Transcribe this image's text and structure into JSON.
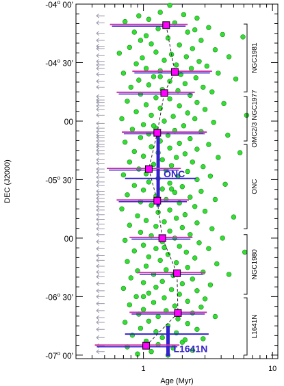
{
  "chart_data": {
    "type": "scatter",
    "xlabel": "Age (Myr)",
    "ylabel": "DEC (J2000)",
    "x_scale": "log",
    "xlim": [
      0.3,
      11
    ],
    "ylim": [
      -4.0,
      -7.03
    ],
    "x_ticks": [
      {
        "value": 1,
        "label": "1"
      },
      {
        "value": 10,
        "label": "10"
      }
    ],
    "y_ticks": [
      {
        "value": -4.0,
        "deg": "-04",
        "min": "00'"
      },
      {
        "value": -4.5,
        "deg": "-04",
        "min": "30'"
      },
      {
        "value": -5.0,
        "deg": "",
        "min": "00"
      },
      {
        "value": -5.5,
        "deg": "-05",
        "min": "30'"
      },
      {
        "value": -6.0,
        "deg": "",
        "min": "00"
      },
      {
        "value": -6.5,
        "deg": "-06",
        "min": "30'"
      },
      {
        "value": -7.0,
        "deg": "-07",
        "min": "00'"
      }
    ],
    "colors": {
      "stars": "#33dd33",
      "star_edge": "#1a8a1a",
      "upper_limits": "#9999aa",
      "median_marker": "#ff00ff",
      "median_edge": "#000000",
      "error_pink": "#cc33aa",
      "error_blue": "#3322cc",
      "dashed_line": "#222222",
      "label_blue": "#3322cc"
    },
    "medians": [
      {
        "dec": -4.18,
        "age": 1.5,
        "err_lo": 0.55,
        "err_hi": 2.2
      },
      {
        "dec": -4.58,
        "age": 1.75,
        "err_lo": 0.82,
        "err_hi": 3.4
      },
      {
        "dec": -4.76,
        "age": 1.45,
        "err_lo": 0.62,
        "err_hi": 2.5
      },
      {
        "dec": -5.1,
        "age": 1.28,
        "err_lo": 0.68,
        "err_hi": 3.1
      },
      {
        "dec": -5.41,
        "age": 1.1,
        "err_lo": 0.52,
        "err_hi": 1.95
      },
      {
        "dec": -5.68,
        "age": 1.28,
        "err_lo": 0.62,
        "err_hi": 2.25
      },
      {
        "dec": -6.0,
        "age": 1.4,
        "err_lo": 0.78,
        "err_hi": 2.4
      },
      {
        "dec": -6.3,
        "age": 1.82,
        "err_lo": 0.9,
        "err_hi": 3.0
      },
      {
        "dec": -6.64,
        "age": 1.85,
        "err_lo": 0.78,
        "err_hi": 3.1
      },
      {
        "dec": -6.92,
        "age": 1.05,
        "err_lo": 0.42,
        "err_hi": 1.9
      }
    ],
    "cluster_markers": [
      {
        "label": "ONC",
        "age": 1.3,
        "dec_top": -5.11,
        "dec_bottom": -5.73,
        "range_lo": 0.72,
        "range_hi": 2.55,
        "range_dec": -5.49
      },
      {
        "label": "L1641N",
        "age": 1.55,
        "dec_top": -6.75,
        "dec_bottom": -7.01,
        "range_lo": 0.72,
        "range_hi": 3.2,
        "range_dec": -6.82
      }
    ],
    "regions": [
      {
        "label": "NGC1981",
        "dec_top": -4.17,
        "dec_bottom": -4.75
      },
      {
        "label": "OMC2/3 NGC1977",
        "dec_top": -4.79,
        "dec_bottom": -5.17
      },
      {
        "label": "ONC",
        "dec_top": -5.2,
        "dec_bottom": -5.92
      },
      {
        "label": "NGC1980",
        "dec_top": -5.97,
        "dec_bottom": -6.48
      },
      {
        "label": "L1641N",
        "dec_top": -6.51,
        "dec_bottom": -7.0
      }
    ],
    "upper_limit_age": 0.5,
    "upper_limit_decs": [
      -4.1,
      -4.16,
      -4.25,
      -4.31,
      -4.36,
      -4.38,
      -4.44,
      -4.49,
      -4.52,
      -4.55,
      -4.6,
      -4.66,
      -4.71,
      -4.79,
      -4.82,
      -4.84,
      -4.87,
      -4.9,
      -4.95,
      -5.02,
      -5.06,
      -5.09,
      -5.12,
      -5.14,
      -5.17,
      -5.2,
      -5.22,
      -5.25,
      -5.28,
      -5.33,
      -5.36,
      -5.41,
      -5.44,
      -5.48,
      -5.52,
      -5.55,
      -5.6,
      -5.63,
      -5.66,
      -5.69,
      -5.73,
      -5.76,
      -5.8,
      -5.84,
      -5.88,
      -5.92,
      -5.97,
      -6.03,
      -6.09,
      -6.15,
      -6.19,
      -6.24,
      -6.29,
      -6.33,
      -6.39,
      -6.45,
      -6.5,
      -6.56,
      -6.62,
      -6.68,
      -6.72,
      -6.78,
      -6.85,
      -6.92,
      -6.97
    ],
    "stars": [
      [
        1.6,
        -4.01
      ],
      [
        1.35,
        -4.07
      ],
      [
        0.92,
        -4.1
      ],
      [
        2.05,
        -4.09
      ],
      [
        1.1,
        -4.13
      ],
      [
        2.6,
        -4.12
      ],
      [
        0.72,
        -4.15
      ],
      [
        1.75,
        -4.16
      ],
      [
        3.2,
        -4.2
      ],
      [
        1.3,
        -4.21
      ],
      [
        0.85,
        -4.24
      ],
      [
        2.2,
        -4.24
      ],
      [
        1.05,
        -4.27
      ],
      [
        4.1,
        -4.26
      ],
      [
        1.55,
        -4.29
      ],
      [
        0.95,
        -4.31
      ],
      [
        2.8,
        -4.31
      ],
      [
        5.9,
        -4.28
      ],
      [
        1.15,
        -4.34
      ],
      [
        1.9,
        -4.35
      ],
      [
        0.78,
        -4.37
      ],
      [
        2.4,
        -4.38
      ],
      [
        3.6,
        -4.39
      ],
      [
        1.25,
        -4.41
      ],
      [
        0.65,
        -4.42
      ],
      [
        1.65,
        -4.43
      ],
      [
        2.15,
        -4.45
      ],
      [
        0.98,
        -4.46
      ],
      [
        4.6,
        -4.45
      ],
      [
        1.45,
        -4.48
      ],
      [
        2.7,
        -4.49
      ],
      [
        0.88,
        -4.51
      ],
      [
        1.8,
        -4.52
      ],
      [
        3.1,
        -4.53
      ],
      [
        1.05,
        -4.55
      ],
      [
        2.35,
        -4.55
      ],
      [
        1.35,
        -4.57
      ],
      [
        0.7,
        -4.59
      ],
      [
        1.95,
        -4.6
      ],
      [
        3.8,
        -4.59
      ],
      [
        1.2,
        -4.62
      ],
      [
        2.55,
        -4.63
      ],
      [
        0.92,
        -4.65
      ],
      [
        1.6,
        -4.66
      ],
      [
        5.2,
        -4.64
      ],
      [
        2.1,
        -4.68
      ],
      [
        1.1,
        -4.69
      ],
      [
        0.8,
        -4.71
      ],
      [
        2.9,
        -4.71
      ],
      [
        1.4,
        -4.73
      ],
      [
        1.85,
        -4.74
      ],
      [
        3.4,
        -4.75
      ],
      [
        0.95,
        -4.77
      ],
      [
        2.3,
        -4.78
      ],
      [
        1.25,
        -4.8
      ],
      [
        1.6,
        -4.81
      ],
      [
        0.75,
        -4.83
      ],
      [
        2.6,
        -4.84
      ],
      [
        4.2,
        -4.85
      ],
      [
        1.05,
        -4.86
      ],
      [
        1.9,
        -4.87
      ],
      [
        1.35,
        -4.89
      ],
      [
        3.0,
        -4.9
      ],
      [
        0.88,
        -4.92
      ],
      [
        2.2,
        -4.93
      ],
      [
        1.15,
        -4.95
      ],
      [
        1.7,
        -4.96
      ],
      [
        6.3,
        -4.95
      ],
      [
        0.68,
        -4.98
      ],
      [
        2.5,
        -4.98
      ],
      [
        1.45,
        -5.0
      ],
      [
        3.5,
        -5.01
      ],
      [
        1.0,
        -5.03
      ],
      [
        2.05,
        -5.04
      ],
      [
        1.25,
        -5.06
      ],
      [
        0.82,
        -5.07
      ],
      [
        1.75,
        -5.08
      ],
      [
        2.8,
        -5.09
      ],
      [
        1.1,
        -5.11
      ],
      [
        1.55,
        -5.12
      ],
      [
        4.5,
        -5.12
      ],
      [
        0.95,
        -5.14
      ],
      [
        2.3,
        -5.15
      ],
      [
        1.35,
        -5.17
      ],
      [
        0.72,
        -5.18
      ],
      [
        1.9,
        -5.19
      ],
      [
        3.2,
        -5.2
      ],
      [
        1.15,
        -5.22
      ],
      [
        1.6,
        -5.23
      ],
      [
        2.6,
        -5.24
      ],
      [
        0.85,
        -5.26
      ],
      [
        1.3,
        -5.27
      ],
      [
        2.1,
        -5.28
      ],
      [
        5.6,
        -5.27
      ],
      [
        1.0,
        -5.3
      ],
      [
        1.8,
        -5.31
      ],
      [
        3.8,
        -5.31
      ],
      [
        1.4,
        -5.33
      ],
      [
        0.78,
        -5.35
      ],
      [
        2.4,
        -5.35
      ],
      [
        1.2,
        -5.37
      ],
      [
        1.65,
        -5.38
      ],
      [
        2.9,
        -5.39
      ],
      [
        0.92,
        -5.41
      ],
      [
        1.5,
        -5.42
      ],
      [
        2.2,
        -5.43
      ],
      [
        1.05,
        -5.45
      ],
      [
        0.7,
        -5.46
      ],
      [
        1.85,
        -5.47
      ],
      [
        3.3,
        -5.47
      ],
      [
        1.3,
        -5.49
      ],
      [
        2.6,
        -5.5
      ],
      [
        1.1,
        -5.52
      ],
      [
        1.6,
        -5.53
      ],
      [
        0.85,
        -5.55
      ],
      [
        4.3,
        -5.54
      ],
      [
        2.0,
        -5.56
      ],
      [
        1.4,
        -5.58
      ],
      [
        1.0,
        -5.59
      ],
      [
        2.8,
        -5.6
      ],
      [
        1.75,
        -5.61
      ],
      [
        0.75,
        -5.63
      ],
      [
        1.25,
        -5.64
      ],
      [
        2.3,
        -5.65
      ],
      [
        1.5,
        -5.67
      ],
      [
        3.6,
        -5.67
      ],
      [
        0.95,
        -5.69
      ],
      [
        1.9,
        -5.7
      ],
      [
        1.15,
        -5.72
      ],
      [
        2.5,
        -5.73
      ],
      [
        0.68,
        -5.75
      ],
      [
        1.6,
        -5.76
      ],
      [
        3.0,
        -5.77
      ],
      [
        1.3,
        -5.78
      ],
      [
        2.1,
        -5.8
      ],
      [
        0.9,
        -5.81
      ],
      [
        1.8,
        -5.83
      ],
      [
        5.0,
        -5.82
      ],
      [
        1.05,
        -5.85
      ],
      [
        1.45,
        -5.86
      ],
      [
        2.6,
        -5.87
      ],
      [
        0.78,
        -5.89
      ],
      [
        1.25,
        -5.9
      ],
      [
        2.0,
        -5.91
      ],
      [
        3.4,
        -5.92
      ],
      [
        1.6,
        -5.94
      ],
      [
        0.95,
        -5.95
      ],
      [
        2.3,
        -5.97
      ],
      [
        1.15,
        -5.98
      ],
      [
        1.75,
        -6.0
      ],
      [
        4.1,
        -6.0
      ],
      [
        0.72,
        -6.02
      ],
      [
        1.4,
        -6.03
      ],
      [
        2.7,
        -6.04
      ],
      [
        1.0,
        -6.06
      ],
      [
        1.9,
        -6.07
      ],
      [
        1.25,
        -6.09
      ],
      [
        3.2,
        -6.09
      ],
      [
        0.85,
        -6.11
      ],
      [
        2.15,
        -6.12
      ],
      [
        1.55,
        -6.14
      ],
      [
        6.1,
        -6.12
      ],
      [
        1.1,
        -6.16
      ],
      [
        2.5,
        -6.17
      ],
      [
        1.35,
        -6.19
      ],
      [
        0.75,
        -6.2
      ],
      [
        1.8,
        -6.21
      ],
      [
        3.7,
        -6.22
      ],
      [
        1.05,
        -6.24
      ],
      [
        2.2,
        -6.25
      ],
      [
        1.5,
        -6.27
      ],
      [
        0.9,
        -6.28
      ],
      [
        2.9,
        -6.29
      ],
      [
        1.2,
        -6.31
      ],
      [
        1.7,
        -6.32
      ],
      [
        4.6,
        -6.31
      ],
      [
        0.8,
        -6.34
      ],
      [
        2.4,
        -6.35
      ],
      [
        1.4,
        -6.37
      ],
      [
        1.0,
        -6.38
      ],
      [
        2.0,
        -6.39
      ],
      [
        3.3,
        -6.4
      ],
      [
        1.25,
        -6.42
      ],
      [
        0.7,
        -6.43
      ],
      [
        1.65,
        -6.44
      ],
      [
        2.6,
        -6.45
      ],
      [
        1.1,
        -6.47
      ],
      [
        1.9,
        -6.48
      ],
      [
        0.88,
        -6.5
      ],
      [
        1.45,
        -6.51
      ],
      [
        3.0,
        -6.52
      ],
      [
        2.2,
        -6.54
      ],
      [
        1.2,
        -6.55
      ],
      [
        0.78,
        -6.57
      ],
      [
        1.75,
        -6.58
      ],
      [
        2.8,
        -6.59
      ],
      [
        1.0,
        -6.61
      ],
      [
        1.5,
        -6.62
      ],
      [
        2.4,
        -6.64
      ],
      [
        0.92,
        -6.65
      ],
      [
        1.3,
        -6.67
      ],
      [
        3.6,
        -6.67
      ],
      [
        1.85,
        -6.69
      ],
      [
        1.1,
        -6.71
      ],
      [
        0.72,
        -6.72
      ],
      [
        2.2,
        -6.73
      ],
      [
        1.55,
        -6.75
      ],
      [
        0.95,
        -6.77
      ],
      [
        2.6,
        -6.78
      ],
      [
        1.25,
        -6.8
      ],
      [
        1.8,
        -6.81
      ],
      [
        0.82,
        -6.83
      ],
      [
        1.4,
        -6.85
      ],
      [
        2.9,
        -6.86
      ],
      [
        1.05,
        -6.88
      ],
      [
        2.0,
        -6.89
      ],
      [
        1.3,
        -6.91
      ],
      [
        0.75,
        -6.93
      ],
      [
        1.7,
        -6.94
      ],
      [
        2.4,
        -6.96
      ],
      [
        1.15,
        -6.97
      ],
      [
        0.9,
        -6.99
      ],
      [
        1.55,
        -7.0
      ],
      [
        2.1,
        -6.87
      ],
      [
        1.0,
        -6.5
      ],
      [
        1.35,
        -4.62
      ],
      [
        2.5,
        -4.22
      ],
      [
        1.2,
        -5.04
      ],
      [
        1.65,
        -5.58
      ],
      [
        1.45,
        -6.08
      ]
    ]
  }
}
